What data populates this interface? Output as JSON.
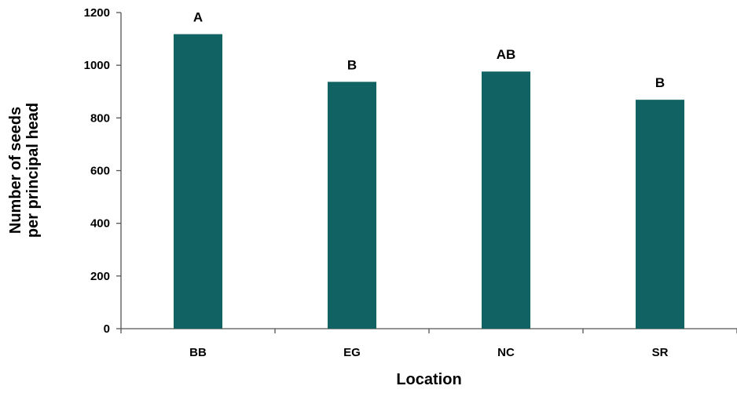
{
  "chart_data": {
    "type": "bar",
    "title": "",
    "xlabel": "Location",
    "ylabel_lines": [
      "Number of seeds",
      "per principal head"
    ],
    "categories": [
      "BB",
      "EG",
      "NC",
      "SR"
    ],
    "values": [
      1118,
      937,
      976,
      869
    ],
    "significance_labels": [
      "A",
      "B",
      "AB",
      "B"
    ],
    "ylim": [
      0,
      1200
    ],
    "yticks": [
      0,
      200,
      400,
      600,
      800,
      1000,
      1200
    ],
    "grid": false,
    "legend": "none",
    "bar_color": "#116262",
    "axis_color": "#555555"
  }
}
